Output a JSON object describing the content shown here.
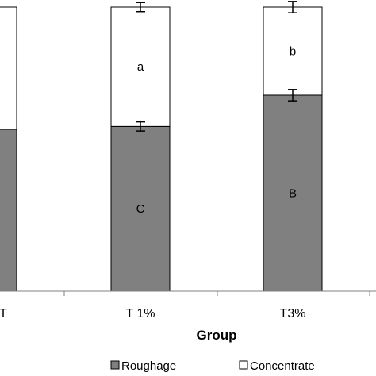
{
  "chart_data": {
    "type": "bar",
    "stacked": true,
    "categories": [
      "T",
      "T 1%",
      "T3%"
    ],
    "series": [
      {
        "name": "Roughage",
        "color": "#808080",
        "values": [
          57,
          58,
          69
        ],
        "errors": [
          null,
          0.8,
          1.0
        ]
      },
      {
        "name": "Concentrate",
        "color": "#ffffff",
        "values": [
          43,
          42,
          31
        ],
        "errors": [
          null,
          0.8,
          1.0
        ]
      }
    ],
    "letters": {
      "Roughage": [
        "",
        "C",
        "B"
      ],
      "Concentrate": [
        "",
        "a",
        "b"
      ]
    },
    "xlabel": "Group",
    "ylim": [
      0,
      100
    ],
    "legend_position": "bottom",
    "grid": false
  }
}
